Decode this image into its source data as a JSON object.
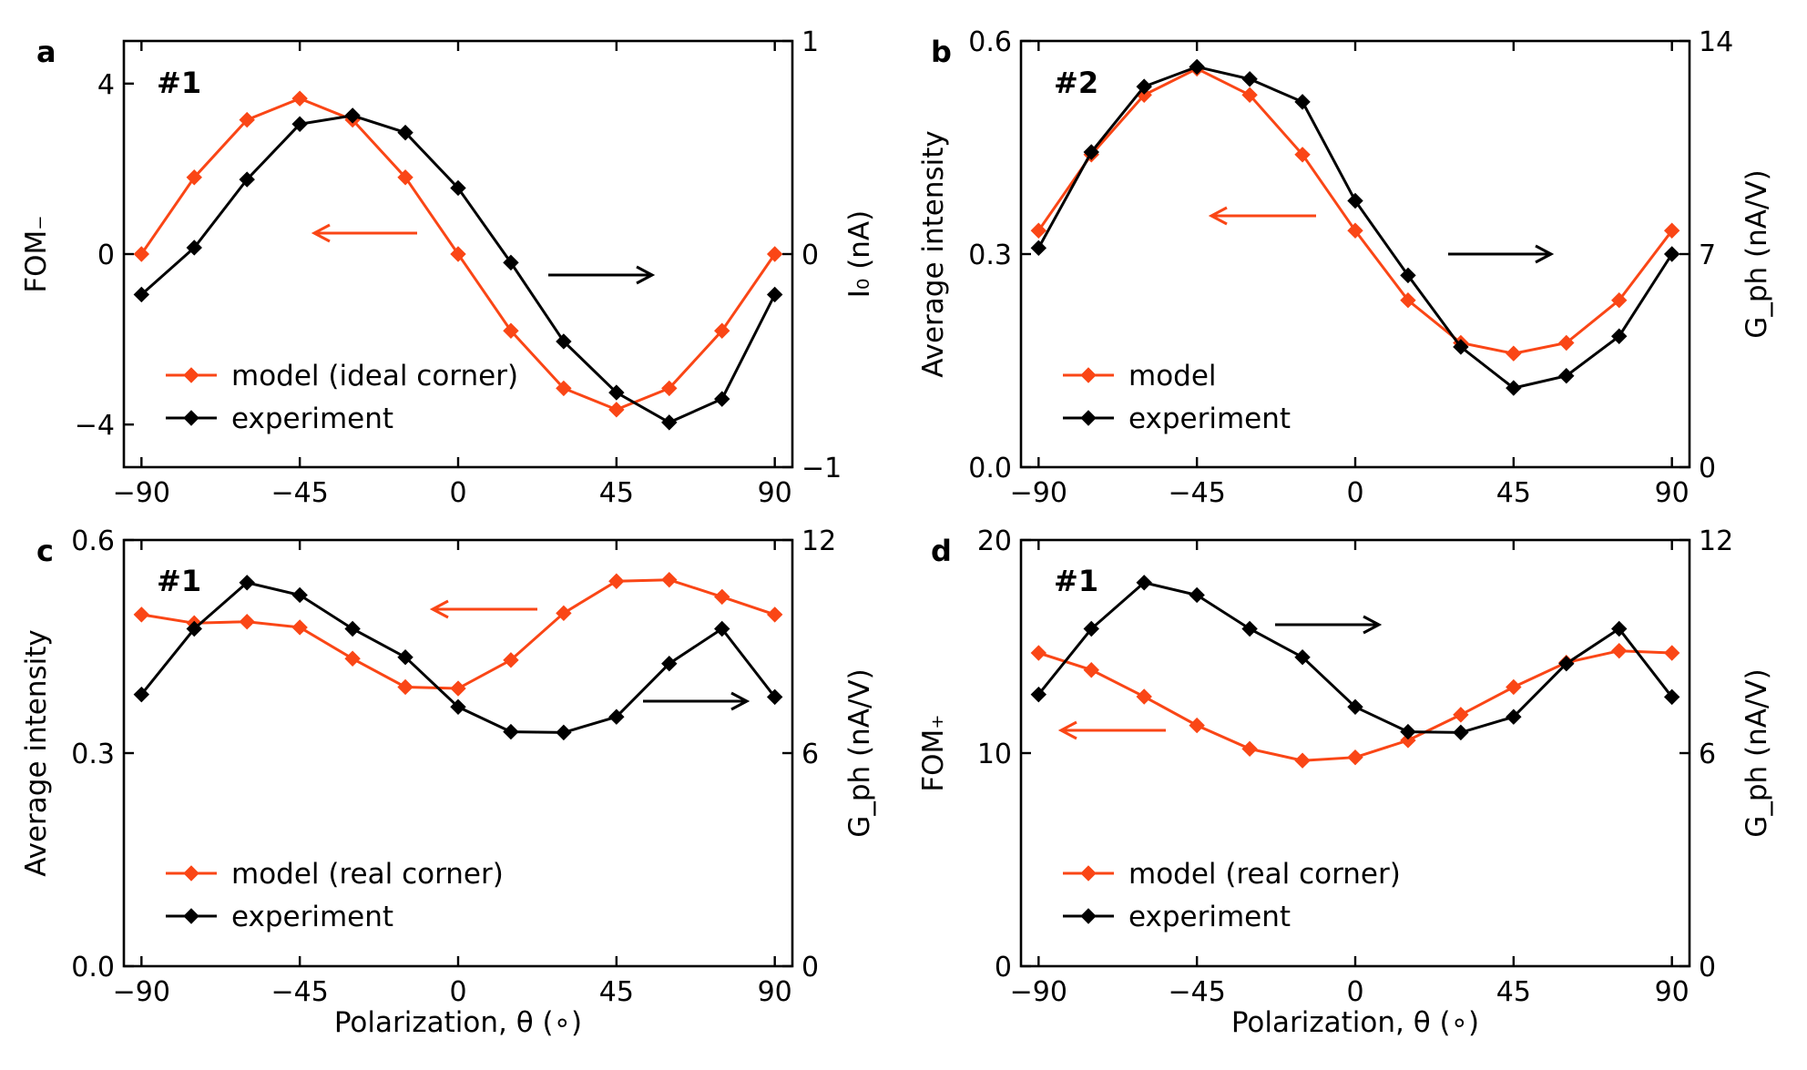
{
  "colors": {
    "model": "#fa4616",
    "experiment": "#000000"
  },
  "x_tick_labels": [
    "−90",
    "−45",
    "0",
    "45",
    "90"
  ],
  "chart_data": [
    {
      "panel": "a",
      "type": "line",
      "tag": "#1",
      "x": [
        -90,
        -75,
        -60,
        -45,
        -30,
        -15,
        0,
        15,
        30,
        45,
        60,
        75,
        90
      ],
      "xlim": [
        -95,
        95
      ],
      "xlabel": "",
      "left_axis": {
        "label": "FOM₋",
        "ylim": [
          -5,
          5
        ],
        "ticks": [
          -4,
          0,
          4
        ],
        "tick_labels": [
          "−4",
          "0",
          "4"
        ]
      },
      "right_axis": {
        "label": "I₀ (nA)",
        "ylim": [
          -1,
          1
        ],
        "ticks": [
          -1,
          0,
          1
        ],
        "tick_labels": [
          "−1",
          "0",
          "1"
        ]
      },
      "series": [
        {
          "name": "model (ideal corner)",
          "axis": "left",
          "values": [
            0.0,
            1.8,
            3.15,
            3.65,
            3.15,
            1.8,
            0.0,
            -1.8,
            -3.15,
            -3.65,
            -3.15,
            -1.8,
            0.0
          ]
        },
        {
          "name": "experiment",
          "axis": "right",
          "values": [
            -0.19,
            0.03,
            0.35,
            0.61,
            0.65,
            0.57,
            0.31,
            -0.04,
            -0.41,
            -0.65,
            -0.79,
            -0.68,
            -0.19
          ]
        }
      ],
      "legend": [
        "model (ideal corner)",
        "experiment"
      ],
      "legend_position": "lower-left",
      "arrows": [
        {
          "points_to": "left",
          "color": "model"
        },
        {
          "points_to": "right",
          "color": "experiment"
        }
      ]
    },
    {
      "panel": "b",
      "type": "line",
      "tag": "#2",
      "x": [
        -90,
        -75,
        -60,
        -45,
        -30,
        -15,
        0,
        15,
        30,
        45,
        60,
        75,
        90
      ],
      "xlim": [
        -95,
        95
      ],
      "xlabel": "",
      "left_axis": {
        "label": "Average intensity",
        "ylim": [
          0.0,
          0.6
        ],
        "ticks": [
          0.0,
          0.3,
          0.6
        ],
        "tick_labels": [
          "0.0",
          "0.3",
          "0.6"
        ]
      },
      "right_axis": {
        "label": "G_ph (nA/V)",
        "ylim": [
          0,
          14
        ],
        "ticks": [
          0,
          7,
          14
        ],
        "tick_labels": [
          "0",
          "7",
          "14"
        ]
      },
      "series": [
        {
          "name": "model",
          "axis": "left",
          "values": [
            0.333,
            0.44,
            0.524,
            0.561,
            0.524,
            0.44,
            0.333,
            0.235,
            0.175,
            0.16,
            0.175,
            0.235,
            0.333
          ]
        },
        {
          "name": "experiment",
          "axis": "right",
          "values": [
            7.2,
            10.35,
            12.5,
            13.15,
            12.75,
            12.0,
            8.75,
            6.3,
            3.95,
            2.6,
            3.0,
            4.3,
            7.0
          ]
        }
      ],
      "legend": [
        "model",
        "experiment"
      ],
      "legend_position": "lower-left",
      "arrows": [
        {
          "points_to": "left",
          "color": "model"
        },
        {
          "points_to": "right",
          "color": "experiment"
        }
      ]
    },
    {
      "panel": "c",
      "type": "line",
      "tag": "#1",
      "x": [
        -90,
        -75,
        -60,
        -45,
        -30,
        -15,
        0,
        15,
        30,
        45,
        60,
        75,
        90
      ],
      "xlim": [
        -95,
        95
      ],
      "xlabel": "Polarization, θ (∘)",
      "left_axis": {
        "label": "Average intensity",
        "ylim": [
          0.0,
          0.6
        ],
        "ticks": [
          0.0,
          0.3,
          0.6
        ],
        "tick_labels": [
          "0.0",
          "0.3",
          "0.6"
        ]
      },
      "right_axis": {
        "label": "G_ph (nA/V)",
        "ylim": [
          0,
          12
        ],
        "ticks": [
          0,
          6,
          12
        ],
        "tick_labels": [
          "0",
          "6",
          "12"
        ]
      },
      "series": [
        {
          "name": "model (real corner)",
          "axis": "left",
          "values": [
            0.495,
            0.483,
            0.485,
            0.477,
            0.433,
            0.393,
            0.391,
            0.431,
            0.497,
            0.542,
            0.544,
            0.52,
            0.495
          ]
        },
        {
          "name": "experiment",
          "axis": "right",
          "values": [
            7.65,
            9.5,
            10.8,
            10.45,
            9.5,
            8.7,
            7.3,
            6.6,
            6.58,
            7.02,
            8.52,
            9.5,
            7.58
          ]
        }
      ],
      "legend": [
        "model (real corner)",
        "experiment"
      ],
      "legend_position": "lower-left",
      "arrows": [
        {
          "points_to": "left",
          "color": "model"
        },
        {
          "points_to": "right",
          "color": "experiment"
        }
      ]
    },
    {
      "panel": "d",
      "type": "line",
      "tag": "#1",
      "x": [
        -90,
        -75,
        -60,
        -45,
        -30,
        -15,
        0,
        15,
        30,
        45,
        60,
        75,
        90
      ],
      "xlim": [
        -95,
        95
      ],
      "xlabel": "Polarization, θ (∘)",
      "left_axis": {
        "label": "FOM₊",
        "ylim": [
          0,
          20
        ],
        "ticks": [
          0,
          10,
          20
        ],
        "tick_labels": [
          "0",
          "10",
          "20"
        ]
      },
      "right_axis": {
        "label": "G_ph (nA/V)",
        "ylim": [
          0,
          12
        ],
        "ticks": [
          0,
          6,
          12
        ],
        "tick_labels": [
          "0",
          "6",
          "12"
        ]
      },
      "series": [
        {
          "name": "model (real corner)",
          "axis": "left",
          "values": [
            14.7,
            13.9,
            12.65,
            11.3,
            10.2,
            9.65,
            9.8,
            10.6,
            11.8,
            13.1,
            14.25,
            14.8,
            14.7
          ]
        },
        {
          "name": "experiment",
          "axis": "right",
          "values": [
            7.65,
            9.5,
            10.8,
            10.45,
            9.5,
            8.7,
            7.3,
            6.6,
            6.58,
            7.02,
            8.52,
            9.5,
            7.58
          ]
        }
      ],
      "legend": [
        "model (real corner)",
        "experiment"
      ],
      "legend_position": "lower-left",
      "arrows": [
        {
          "points_to": "left",
          "color": "model"
        },
        {
          "points_to": "right",
          "color": "experiment"
        }
      ]
    }
  ]
}
